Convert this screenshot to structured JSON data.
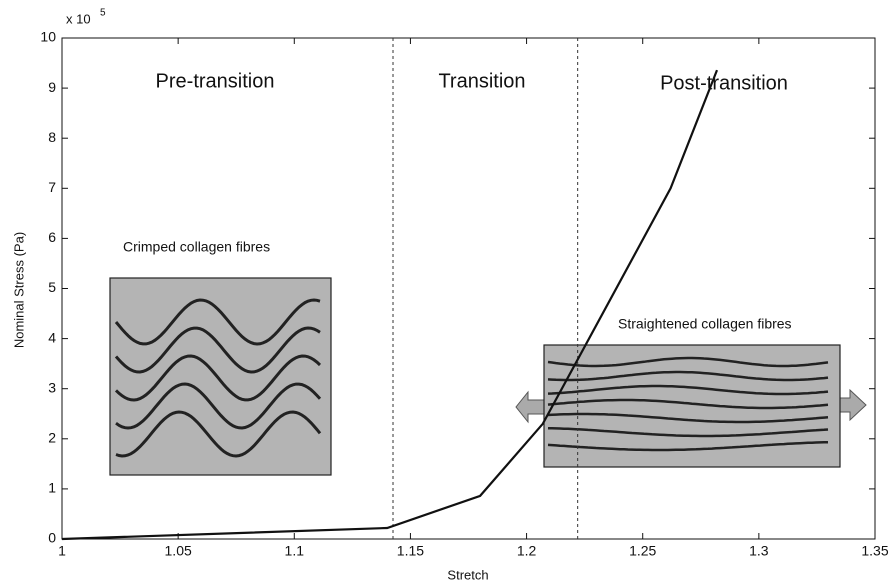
{
  "chart_data": {
    "type": "line",
    "x_label": "Stretch",
    "y_label": "Nominal Stress (Pa)",
    "multiplier": {
      "base": "x 10",
      "exponent": "5"
    },
    "x": [
      1,
      1.14,
      1.18,
      1.207,
      1.262,
      1.282
    ],
    "values": [
      0,
      0.22,
      0.86,
      2.3,
      7.0,
      9.36
    ],
    "color": "#111111",
    "xlim": [
      1,
      1.35
    ],
    "xticks": [
      1,
      1.05,
      1.1,
      1.15,
      1.2,
      1.25,
      1.3,
      1.35
    ],
    "ylim": [
      0,
      10
    ],
    "yticks": [
      0,
      1,
      2,
      3,
      4,
      5,
      6,
      7,
      8,
      9,
      10
    ],
    "grid": false,
    "boundaries": [
      1.1425,
      1.222
    ],
    "annotations": {
      "pre": "Pre-transition",
      "transition": "Transition",
      "post": "Post-transition",
      "crimped": "Crimped collagen fibres",
      "straightened": "Straightened collagen fibres"
    }
  }
}
